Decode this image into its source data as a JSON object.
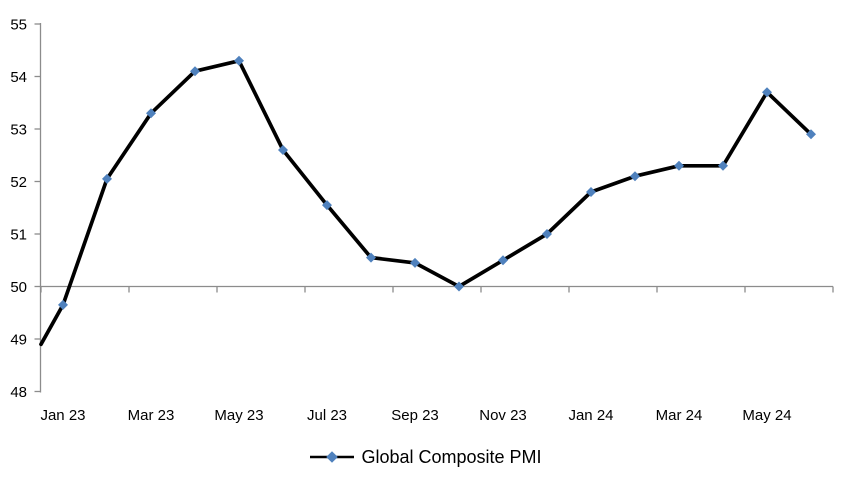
{
  "chart_data": {
    "type": "line",
    "title": "",
    "categories": [
      "Jan 23",
      "Feb 23",
      "Mar 23",
      "Apr 23",
      "May 23",
      "Jun 23",
      "Jul 23",
      "Aug 23",
      "Sep 23",
      "Oct 23",
      "Nov 23",
      "Dec 23",
      "Jan 24",
      "Feb 24",
      "Mar 24",
      "Apr 24",
      "May 24",
      "Jun 24"
    ],
    "series": [
      {
        "name": "Global Composite PMI",
        "values": [
          49.65,
          52.05,
          53.3,
          54.1,
          54.3,
          52.6,
          51.55,
          50.55,
          50.45,
          50.0,
          50.5,
          51.0,
          51.8,
          52.1,
          52.3,
          52.3,
          53.7,
          52.9
        ],
        "marker": "diamond",
        "line_color": "#000000",
        "marker_color": "#4F81BD"
      }
    ],
    "lead_in_value_at_left_axis": 48.9,
    "ylim": [
      48,
      55
    ],
    "y_ticks": [
      48,
      49,
      50,
      51,
      52,
      53,
      54,
      55
    ],
    "x_tick_labels_shown": [
      "Jan 23",
      "Mar 23",
      "May 23",
      "Jul 23",
      "Sep 23",
      "Nov 23",
      "Jan 24",
      "Mar 24",
      "May 24"
    ],
    "x_label_interval": 2,
    "x_axis_cross_value": 50,
    "grid": false,
    "legend_position": "bottom-center",
    "axis_color": "#8C8C8C",
    "text_color": "#000000",
    "background_color": "#FFFFFF"
  },
  "legend": {
    "label": "Global Composite PMI"
  }
}
